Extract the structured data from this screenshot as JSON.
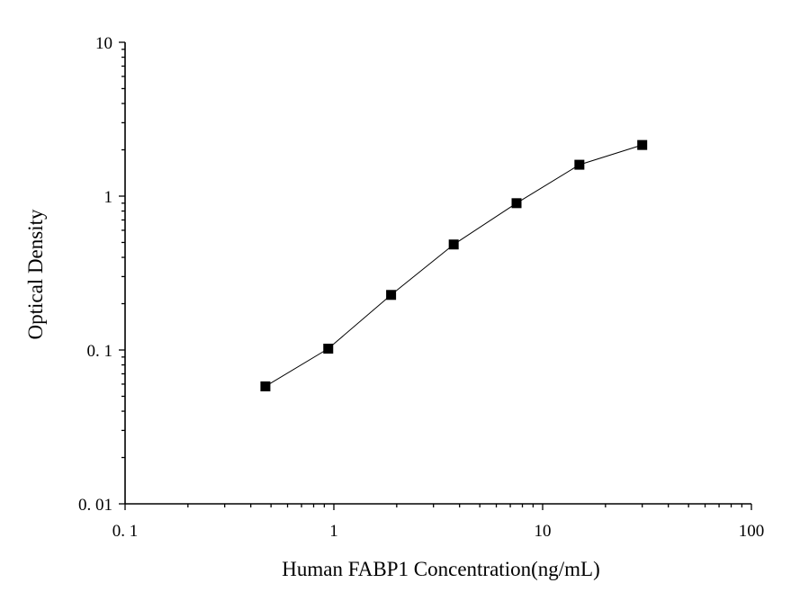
{
  "chart_data": {
    "type": "line",
    "title": "",
    "xlabel": "Human FABP1 Concentration(ng/mL)",
    "ylabel": "Optical Density",
    "xscale": "log",
    "yscale": "log",
    "xlim": [
      0.1,
      100
    ],
    "ylim": [
      0.01,
      10
    ],
    "x_ticks": [
      {
        "value": 0.1,
        "label": "0. 1"
      },
      {
        "value": 1,
        "label": "1"
      },
      {
        "value": 10,
        "label": "10"
      },
      {
        "value": 100,
        "label": "100"
      }
    ],
    "y_ticks": [
      {
        "value": 0.01,
        "label": "0. 01"
      },
      {
        "value": 0.1,
        "label": "0. 1"
      },
      {
        "value": 1,
        "label": "1"
      },
      {
        "value": 10,
        "label": "10"
      }
    ],
    "grid": false,
    "legend": "none",
    "marker": "square",
    "color": "#000000",
    "series": [
      {
        "x": [
          0.47,
          0.94,
          1.88,
          3.75,
          7.5,
          15,
          30
        ],
        "y": [
          0.058,
          0.102,
          0.228,
          0.485,
          0.9,
          1.6,
          2.15
        ]
      }
    ]
  }
}
